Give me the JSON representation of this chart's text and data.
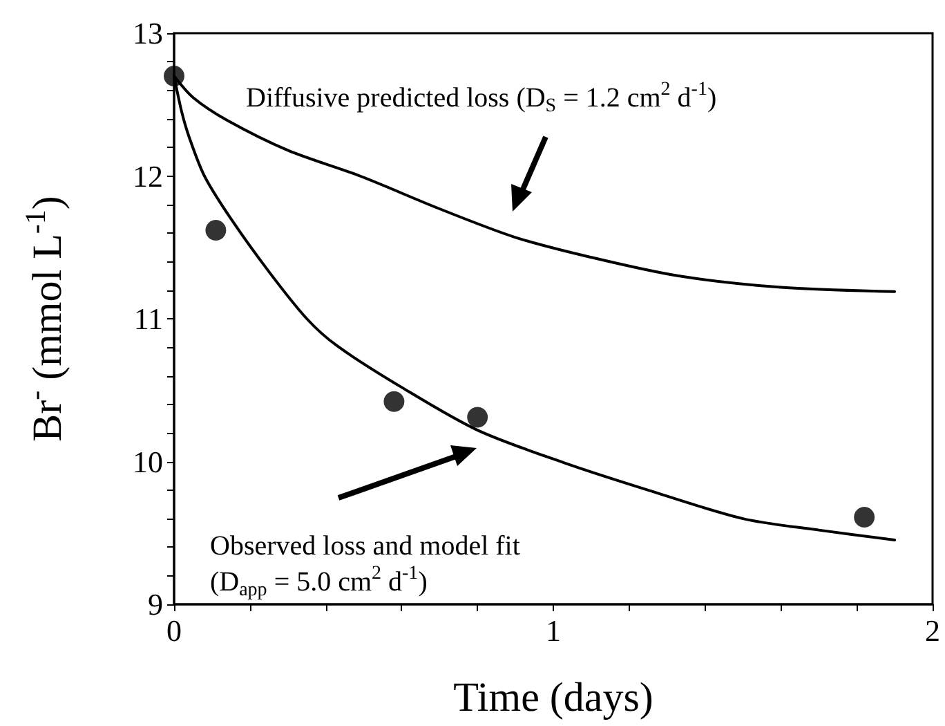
{
  "chart_data": {
    "type": "scatter",
    "xlabel": "Time (days)",
    "ylabel": "Br$^{-}$ (mmol L$^{-1}$)",
    "annotations": [
      "Diffusive predicted loss (D$_{S}$ = 1.2 cm$^{2}$ d$^{-1}$)",
      "Observed loss and model fit\n(D$_{app}$ = 5.0 cm$^{2}$ d$^{-1}$)"
    ],
    "series": [
      {
        "type": "scatter",
        "color": "#000000",
        "marker": "circle",
        "x": [
          0,
          0.11,
          0.58,
          0.8,
          1.82
        ],
        "values": [
          12.7,
          11.62,
          10.42,
          10.31,
          9.61
        ]
      },
      {
        "type": "line",
        "color": "#000000",
        "line_style": "solid",
        "marker": "none",
        "x": [
          0,
          0.05,
          0.14,
          0.3,
          0.49,
          0.7,
          0.9,
          1.1,
          1.33,
          1.6,
          1.9
        ],
        "values": [
          12.7,
          12.55,
          12.39,
          12.18,
          12.0,
          11.77,
          11.57,
          11.43,
          11.3,
          11.22,
          11.19
        ]
      },
      {
        "type": "line",
        "color": "#000000",
        "line_style": "solid",
        "marker": "none",
        "x": [
          0,
          0.02,
          0.04,
          0.08,
          0.15,
          0.25,
          0.35,
          0.43,
          0.6,
          0.8,
          1.03,
          1.25,
          1.5,
          1.7,
          1.9
        ],
        "values": [
          12.7,
          12.45,
          12.27,
          12.0,
          11.7,
          11.33,
          11.0,
          10.81,
          10.52,
          10.22,
          9.99,
          9.8,
          9.6,
          9.52,
          9.45
        ]
      }
    ],
    "xlim": [
      0,
      2
    ],
    "xticks": [
      0,
      {
        "value": 0.2,
        "label": null
      },
      {
        "value": 0.4,
        "label": null
      },
      {
        "value": 0.6,
        "label": null
      },
      {
        "value": 0.8,
        "label": null
      },
      1,
      {
        "value": 1.2,
        "label": null
      },
      {
        "value": 1.4,
        "label": null
      },
      {
        "value": 1.6,
        "label": null
      },
      {
        "value": 1.8,
        "label": null
      },
      2
    ],
    "ylim": [
      9,
      13
    ],
    "yticks": [
      9,
      {
        "value": 9.2,
        "label": null
      },
      {
        "value": 9.4,
        "label": null
      },
      {
        "value": 9.6,
        "label": null
      },
      {
        "value": 9.8,
        "label": null
      },
      10,
      {
        "value": 10.2,
        "label": null
      },
      {
        "value": 10.4,
        "label": null
      },
      {
        "value": 10.6,
        "label": null
      },
      {
        "value": 10.8,
        "label": null
      },
      11,
      {
        "value": 11.2,
        "label": null
      },
      {
        "value": 11.4,
        "label": null
      },
      {
        "value": 11.6,
        "label": null
      },
      {
        "value": 11.8,
        "label": null
      },
      12,
      {
        "value": 12.2,
        "label": null
      },
      {
        "value": 12.4,
        "label": null
      },
      {
        "value": 12.6,
        "label": null
      },
      {
        "value": 12.8,
        "label": null
      },
      13
    ],
    "grid": false
  }
}
